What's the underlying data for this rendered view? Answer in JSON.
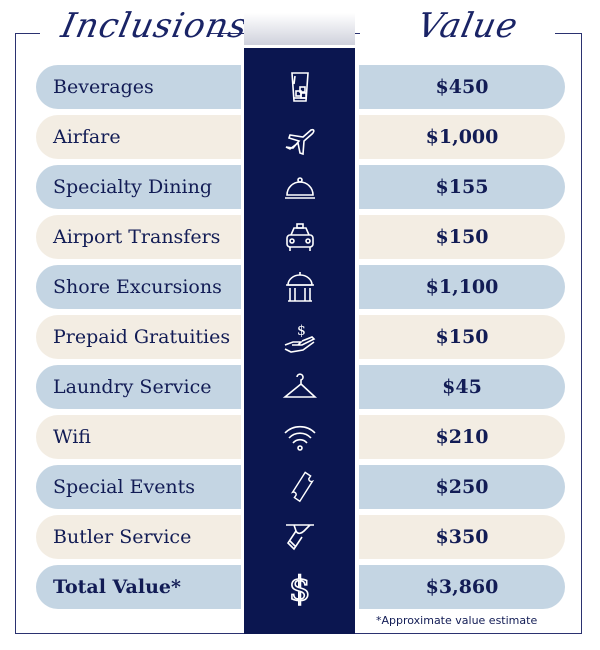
{
  "headers": {
    "left": "Inclusions",
    "right": "Value"
  },
  "colors": {
    "navy": "#0b1650",
    "blue_row": "#c4d5e3",
    "cream_row": "#f3ede3",
    "text": "#121c55"
  },
  "rows": [
    {
      "label": "Beverages",
      "value": "$450",
      "icon": "glass-ice-icon"
    },
    {
      "label": "Airfare",
      "value": "$1,000",
      "icon": "airplane-icon"
    },
    {
      "label": "Specialty Dining",
      "value": "$155",
      "icon": "cloche-icon"
    },
    {
      "label": "Airport Transfers",
      "value": "$150",
      "icon": "taxi-icon"
    },
    {
      "label": "Shore Excursions",
      "value": "$1,100",
      "icon": "monument-icon"
    },
    {
      "label": "Prepaid Gratuities",
      "value": "$150",
      "icon": "hand-dollar-icon"
    },
    {
      "label": "Laundry Service",
      "value": "$45",
      "icon": "hanger-icon"
    },
    {
      "label": "Wifi",
      "value": "$210",
      "icon": "wifi-icon"
    },
    {
      "label": "Special Events",
      "value": "$250",
      "icon": "ticket-icon"
    },
    {
      "label": "Butler Service",
      "value": "$350",
      "icon": "butler-tray-icon"
    }
  ],
  "total": {
    "label": "Total Value*",
    "value": "$3,860",
    "icon": "dollar-icon"
  },
  "footnote": "*Approximate value estimate"
}
